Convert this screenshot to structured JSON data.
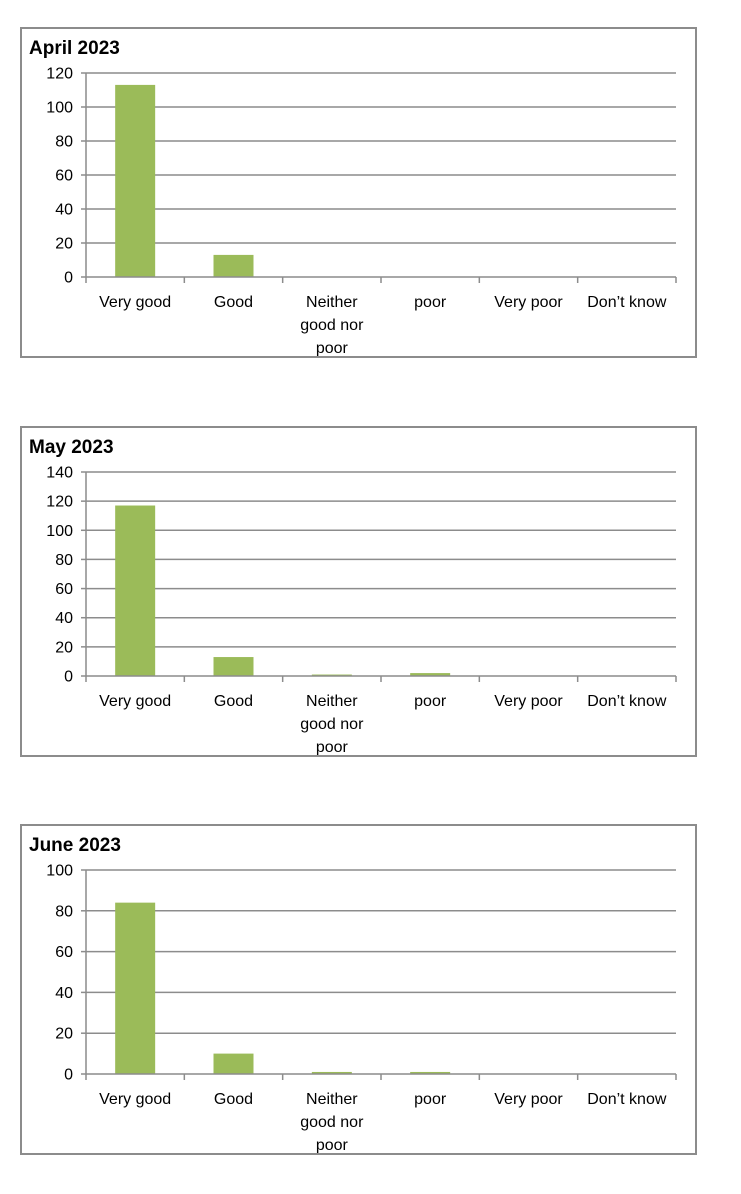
{
  "chart_data": [
    {
      "type": "bar",
      "title": "April 2023",
      "categories": [
        "Very good",
        "Good",
        "Neither good nor poor",
        "poor",
        "Very poor",
        "Don’t know"
      ],
      "category_label_lines": [
        [
          "Very good"
        ],
        [
          "Good"
        ],
        [
          "Neither",
          "good nor",
          "poor"
        ],
        [
          "poor"
        ],
        [
          "Very poor"
        ],
        [
          "Don’t know"
        ]
      ],
      "values": [
        113,
        13,
        0,
        0,
        0,
        0
      ],
      "ylim": [
        0,
        120
      ],
      "yticks": [
        0,
        20,
        40,
        60,
        80,
        100,
        120
      ],
      "grid": true,
      "legend": "none",
      "bar_color": "#9bbb59"
    },
    {
      "type": "bar",
      "title": "May 2023",
      "categories": [
        "Very good",
        "Good",
        "Neither good nor poor",
        "poor",
        "Very poor",
        "Don’t know"
      ],
      "category_label_lines": [
        [
          "Very good"
        ],
        [
          "Good"
        ],
        [
          "Neither",
          "good nor",
          "poor"
        ],
        [
          "poor"
        ],
        [
          "Very poor"
        ],
        [
          "Don’t know"
        ]
      ],
      "values": [
        117,
        13,
        1,
        2,
        0,
        0
      ],
      "ylim": [
        0,
        140
      ],
      "yticks": [
        0,
        20,
        40,
        60,
        80,
        100,
        120,
        140
      ],
      "grid": true,
      "legend": "none",
      "bar_color": "#9bbb59"
    },
    {
      "type": "bar",
      "title": "June 2023",
      "categories": [
        "Very good",
        "Good",
        "Neither good nor poor",
        "poor",
        "Very poor",
        "Don’t know"
      ],
      "category_label_lines": [
        [
          "Very good"
        ],
        [
          "Good"
        ],
        [
          "Neither",
          "good nor",
          "poor"
        ],
        [
          "poor"
        ],
        [
          "Very poor"
        ],
        [
          "Don’t know"
        ]
      ],
      "values": [
        84,
        10,
        1,
        1,
        0,
        0
      ],
      "ylim": [
        0,
        100
      ],
      "yticks": [
        0,
        20,
        40,
        60,
        80,
        100
      ],
      "grid": true,
      "legend": "none",
      "bar_color": "#9bbb59"
    }
  ]
}
